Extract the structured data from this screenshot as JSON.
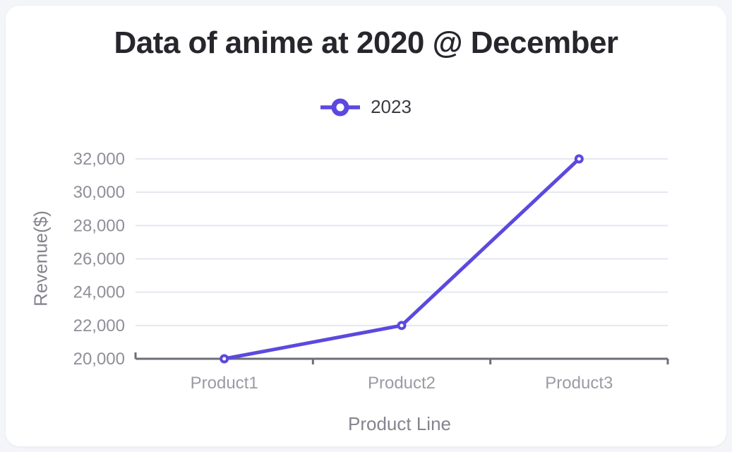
{
  "page": {
    "title": "Data of anime at 2020 @ December"
  },
  "legend": {
    "items": [
      {
        "label": "2023"
      }
    ]
  },
  "axes": {
    "y_title": "Revenue($)",
    "x_title": "Product Line"
  },
  "colors": {
    "accent": "#5b49df",
    "grid": "#e4e7f0",
    "axis": "#6e6e78",
    "y_tick_label": "#8f8f99",
    "x_tick_label": "#9b9ba3",
    "axis_title": "#84848e",
    "title": "#26262c",
    "background": "#f3f5f9",
    "card": "#ffffff"
  },
  "chart_data": {
    "type": "line",
    "title": "Data of anime at 2020 @ December",
    "categories": [
      "Product1",
      "Product2",
      "Product3"
    ],
    "series": [
      {
        "name": "2023",
        "values": [
          20000,
          22000,
          32000
        ]
      }
    ],
    "xlabel": "Product Line",
    "ylabel": "Revenue($)",
    "ylim": [
      20000,
      32000
    ],
    "y_tick_values": [
      20000,
      22000,
      24000,
      26000,
      28000,
      30000,
      32000
    ],
    "y_tick_labels": [
      "20,000",
      "22,000",
      "24,000",
      "26,000",
      "28,000",
      "30,000",
      "32,000"
    ],
    "grid": true,
    "legend_position": "top",
    "marker": "open-circle"
  }
}
